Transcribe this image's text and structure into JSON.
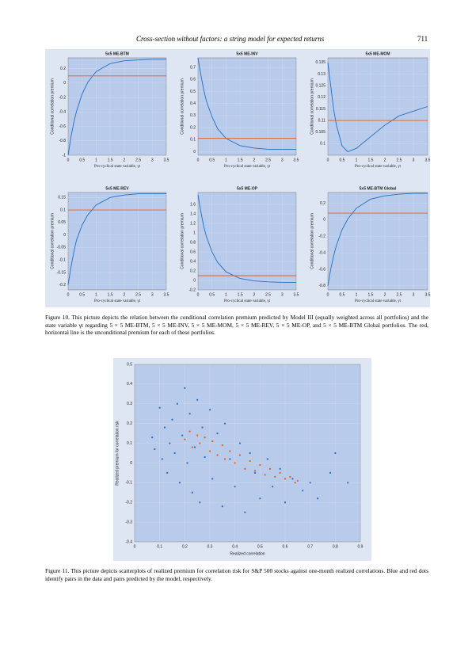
{
  "header": {
    "title": "Cross-section without factors: a string model for expected returns",
    "page": "711"
  },
  "captions": [
    "Figure 10.  This picture depicts the relation between the conditional correlation premium predicted by Model III (equally weighted across all portfolios) and the state variable γt regarding 5 × 5 ME-BTM, 5 × 5 ME-INV, 5 × 5 ME-MOM, 5 × 5 ME-REV, 5 × 5 ME-OP, and 5 × 5 ME-BTM Global portfolios. The red, horizontal line is the unconditional premium for each of these portfolios.",
    "Figure 11.  This picture depicts scatterplots of realized premium for correlation risk for S&P 500 stocks against one-month realized correlations. Blue and red dots identify pairs in the data and pairs predicted by the model, respectively."
  ],
  "chart_data": [
    {
      "type": "line",
      "title": "5x5 ME-BTM",
      "xlabel": "Pro-cyclical state variable, γt",
      "ylabel": "Conditional correlation premium",
      "xlim": [
        0,
        3.5
      ],
      "xticks": [
        0,
        0.5,
        1,
        1.5,
        2,
        2.5,
        3,
        3.5
      ],
      "ylim": [
        -1,
        0.35
      ],
      "yticks": [
        -1,
        -0.8,
        -0.6,
        -0.4,
        -0.2,
        0,
        0.2
      ],
      "grid": true,
      "series": [
        {
          "color": "#1f6fc5",
          "x": [
            0,
            0.1,
            0.2,
            0.3,
            0.5,
            0.7,
            1,
            1.5,
            2,
            2.5,
            3,
            3.5
          ],
          "values": [
            -1,
            -0.75,
            -0.55,
            -0.39,
            -0.15,
            0.01,
            0.16,
            0.27,
            0.31,
            0.32,
            0.33,
            0.33
          ]
        },
        {
          "color": "#f05a14",
          "x": [
            0,
            3.5
          ],
          "values": [
            0.1,
            0.1
          ]
        }
      ]
    },
    {
      "type": "line",
      "title": "5x5 ME-INV",
      "xlabel": "Pro-cyclical state variable, γt",
      "ylabel": "Conditional correlation premium",
      "xlim": [
        0,
        3.5
      ],
      "xticks": [
        0,
        0.5,
        1,
        1.5,
        2,
        2.5,
        3,
        3.5
      ],
      "ylim": [
        -0.03,
        0.78
      ],
      "yticks": [
        0,
        0.1,
        0.2,
        0.3,
        0.4,
        0.5,
        0.6,
        0.7
      ],
      "grid": true,
      "series": [
        {
          "color": "#1f6fc5",
          "x": [
            0,
            0.1,
            0.2,
            0.3,
            0.5,
            0.7,
            1,
            1.5,
            2,
            2.5,
            3,
            3.5
          ],
          "values": [
            0.78,
            0.64,
            0.52,
            0.42,
            0.29,
            0.19,
            0.11,
            0.05,
            0.03,
            0.02,
            0.02,
            0.02
          ]
        },
        {
          "color": "#f05a14",
          "x": [
            0,
            3.5
          ],
          "values": [
            0.11,
            0.11
          ]
        }
      ]
    },
    {
      "type": "line",
      "title": "5x5 ME-MOM",
      "xlabel": "Pro-cyclical state variable, γt",
      "ylabel": "Conditional correlation premium",
      "xlim": [
        0,
        3.5
      ],
      "xticks": [
        0,
        0.5,
        1,
        1.5,
        2,
        2.5,
        3,
        3.5
      ],
      "ylim": [
        0.095,
        0.137
      ],
      "yticks": [
        0.1,
        0.105,
        0.11,
        0.115,
        0.12,
        0.125,
        0.13,
        0.135
      ],
      "grid": true,
      "series": [
        {
          "color": "#1f6fc5",
          "x": [
            0,
            0.1,
            0.2,
            0.3,
            0.5,
            0.7,
            1,
            1.5,
            2,
            2.5,
            3,
            3.5
          ],
          "values": [
            0.135,
            0.125,
            0.115,
            0.108,
            0.099,
            0.0965,
            0.098,
            0.103,
            0.108,
            0.112,
            0.114,
            0.116
          ]
        },
        {
          "color": "#f05a14",
          "x": [
            0,
            3.5
          ],
          "values": [
            0.11,
            0.11
          ]
        }
      ]
    },
    {
      "type": "line",
      "title": "5x5 ME-REV",
      "xlabel": "Pro-cyclical state variable, γt",
      "ylabel": "Conditional correlation premium",
      "xlim": [
        0,
        3.5
      ],
      "xticks": [
        0,
        0.5,
        1,
        1.5,
        2,
        2.5,
        3,
        3.5
      ],
      "ylim": [
        -0.22,
        0.17
      ],
      "yticks": [
        -0.2,
        -0.15,
        -0.1,
        -0.05,
        0,
        0.05,
        0.1,
        0.15
      ],
      "grid": true,
      "series": [
        {
          "color": "#1f6fc5",
          "x": [
            0,
            0.1,
            0.2,
            0.3,
            0.5,
            0.7,
            1,
            1.5,
            2,
            2.5,
            3,
            3.5
          ],
          "values": [
            -0.2,
            -0.13,
            -0.07,
            -0.02,
            0.04,
            0.08,
            0.12,
            0.15,
            0.16,
            0.165,
            0.165,
            0.165
          ]
        },
        {
          "color": "#f05a14",
          "x": [
            0,
            3.5
          ],
          "values": [
            0.1,
            0.1
          ]
        }
      ]
    },
    {
      "type": "line",
      "title": "5x5 ME-OP",
      "xlabel": "Pro-cyclical state variable, γt",
      "ylabel": "Conditional correlation premium",
      "xlim": [
        0,
        3.5
      ],
      "xticks": [
        0,
        0.5,
        1,
        1.5,
        2,
        2.5,
        3,
        3.5
      ],
      "ylim": [
        -0.2,
        1.85
      ],
      "yticks": [
        -0.2,
        0,
        0.2,
        0.4,
        0.6,
        0.8,
        1,
        1.2,
        1.4,
        1.6
      ],
      "grid": true,
      "series": [
        {
          "color": "#1f6fc5",
          "x": [
            0,
            0.1,
            0.2,
            0.3,
            0.5,
            0.7,
            1,
            1.5,
            2,
            2.5,
            3,
            3.5
          ],
          "values": [
            1.8,
            1.45,
            1.15,
            0.92,
            0.6,
            0.38,
            0.18,
            0.04,
            -0.01,
            -0.03,
            -0.04,
            -0.04
          ]
        },
        {
          "color": "#f05a14",
          "x": [
            0,
            3.5
          ],
          "values": [
            0.1,
            0.1
          ]
        }
      ]
    },
    {
      "type": "line",
      "title": "5x5 ME-BTM Global",
      "xlabel": "Pro-cyclical state variable, γt",
      "ylabel": "Conditional correlation premium",
      "xlim": [
        0,
        3.5
      ],
      "xticks": [
        0,
        0.5,
        1,
        1.5,
        2,
        2.5,
        3,
        3.5
      ],
      "ylim": [
        -0.85,
        0.33
      ],
      "yticks": [
        -0.8,
        -0.6,
        -0.4,
        -0.2,
        0,
        0.2
      ],
      "grid": true,
      "series": [
        {
          "color": "#1f6fc5",
          "x": [
            0,
            0.1,
            0.2,
            0.3,
            0.5,
            0.7,
            1,
            1.5,
            2,
            2.5,
            3,
            3.5
          ],
          "values": [
            -0.8,
            -0.6,
            -0.44,
            -0.31,
            -0.12,
            0.01,
            0.14,
            0.25,
            0.29,
            0.31,
            0.32,
            0.32
          ]
        },
        {
          "color": "#f05a14",
          "x": [
            0,
            3.5
          ],
          "values": [
            0.08,
            0.08
          ]
        }
      ]
    },
    {
      "type": "scatter",
      "xlabel": "Realized correlation",
      "ylabel": "Realized premium for correlation risk",
      "xlim": [
        0,
        0.9
      ],
      "xticks": [
        0,
        0.1,
        0.2,
        0.3,
        0.4,
        0.5,
        0.6,
        0.7,
        0.8,
        0.9
      ],
      "ylim": [
        -0.4,
        0.5
      ],
      "yticks": [
        -0.4,
        -0.3,
        -0.2,
        -0.1,
        0,
        0.1,
        0.2,
        0.3,
        0.4,
        0.5
      ],
      "grid": true,
      "series": [
        {
          "color": "#1f6fc5",
          "x": [
            0.07,
            0.08,
            0.1,
            0.11,
            0.12,
            0.13,
            0.14,
            0.15,
            0.16,
            0.17,
            0.18,
            0.19,
            0.2,
            0.21,
            0.22,
            0.23,
            0.24,
            0.25,
            0.26,
            0.27,
            0.28,
            0.3,
            0.31,
            0.33,
            0.35,
            0.36,
            0.38,
            0.4,
            0.42,
            0.44,
            0.46,
            0.48,
            0.5,
            0.53,
            0.55,
            0.58,
            0.6,
            0.63,
            0.67,
            0.7,
            0.73,
            0.78,
            0.8,
            0.85
          ],
          "values": [
            0.13,
            0.07,
            0.28,
            0.02,
            0.18,
            -0.05,
            0.1,
            0.22,
            0.05,
            0.3,
            -0.1,
            0.14,
            0.38,
            0,
            0.25,
            -0.15,
            0.08,
            0.32,
            -0.2,
            0.18,
            0.03,
            0.27,
            -0.08,
            0.15,
            -0.22,
            0.2,
            0.02,
            -0.12,
            0.1,
            -0.25,
            0.05,
            -0.05,
            -0.18,
            0.02,
            -0.12,
            -0.03,
            -0.2,
            -0.08,
            -0.14,
            -0.1,
            -0.18,
            -0.05,
            0.05,
            -0.1
          ]
        },
        {
          "color": "#f05a14",
          "x": [
            0.2,
            0.22,
            0.23,
            0.25,
            0.26,
            0.28,
            0.3,
            0.31,
            0.33,
            0.35,
            0.36,
            0.38,
            0.4,
            0.42,
            0.44,
            0.46,
            0.48,
            0.5,
            0.52,
            0.54,
            0.56,
            0.58,
            0.6,
            0.62,
            0.64,
            0.65
          ],
          "values": [
            0.12,
            0.16,
            0.08,
            0.14,
            0.1,
            0.13,
            0.06,
            0.11,
            0.04,
            0.09,
            0.02,
            0.06,
            0,
            0.04,
            -0.03,
            0.01,
            -0.04,
            -0.01,
            -0.06,
            -0.03,
            -0.07,
            -0.05,
            -0.08,
            -0.07,
            -0.1,
            -0.09
          ]
        }
      ]
    }
  ]
}
